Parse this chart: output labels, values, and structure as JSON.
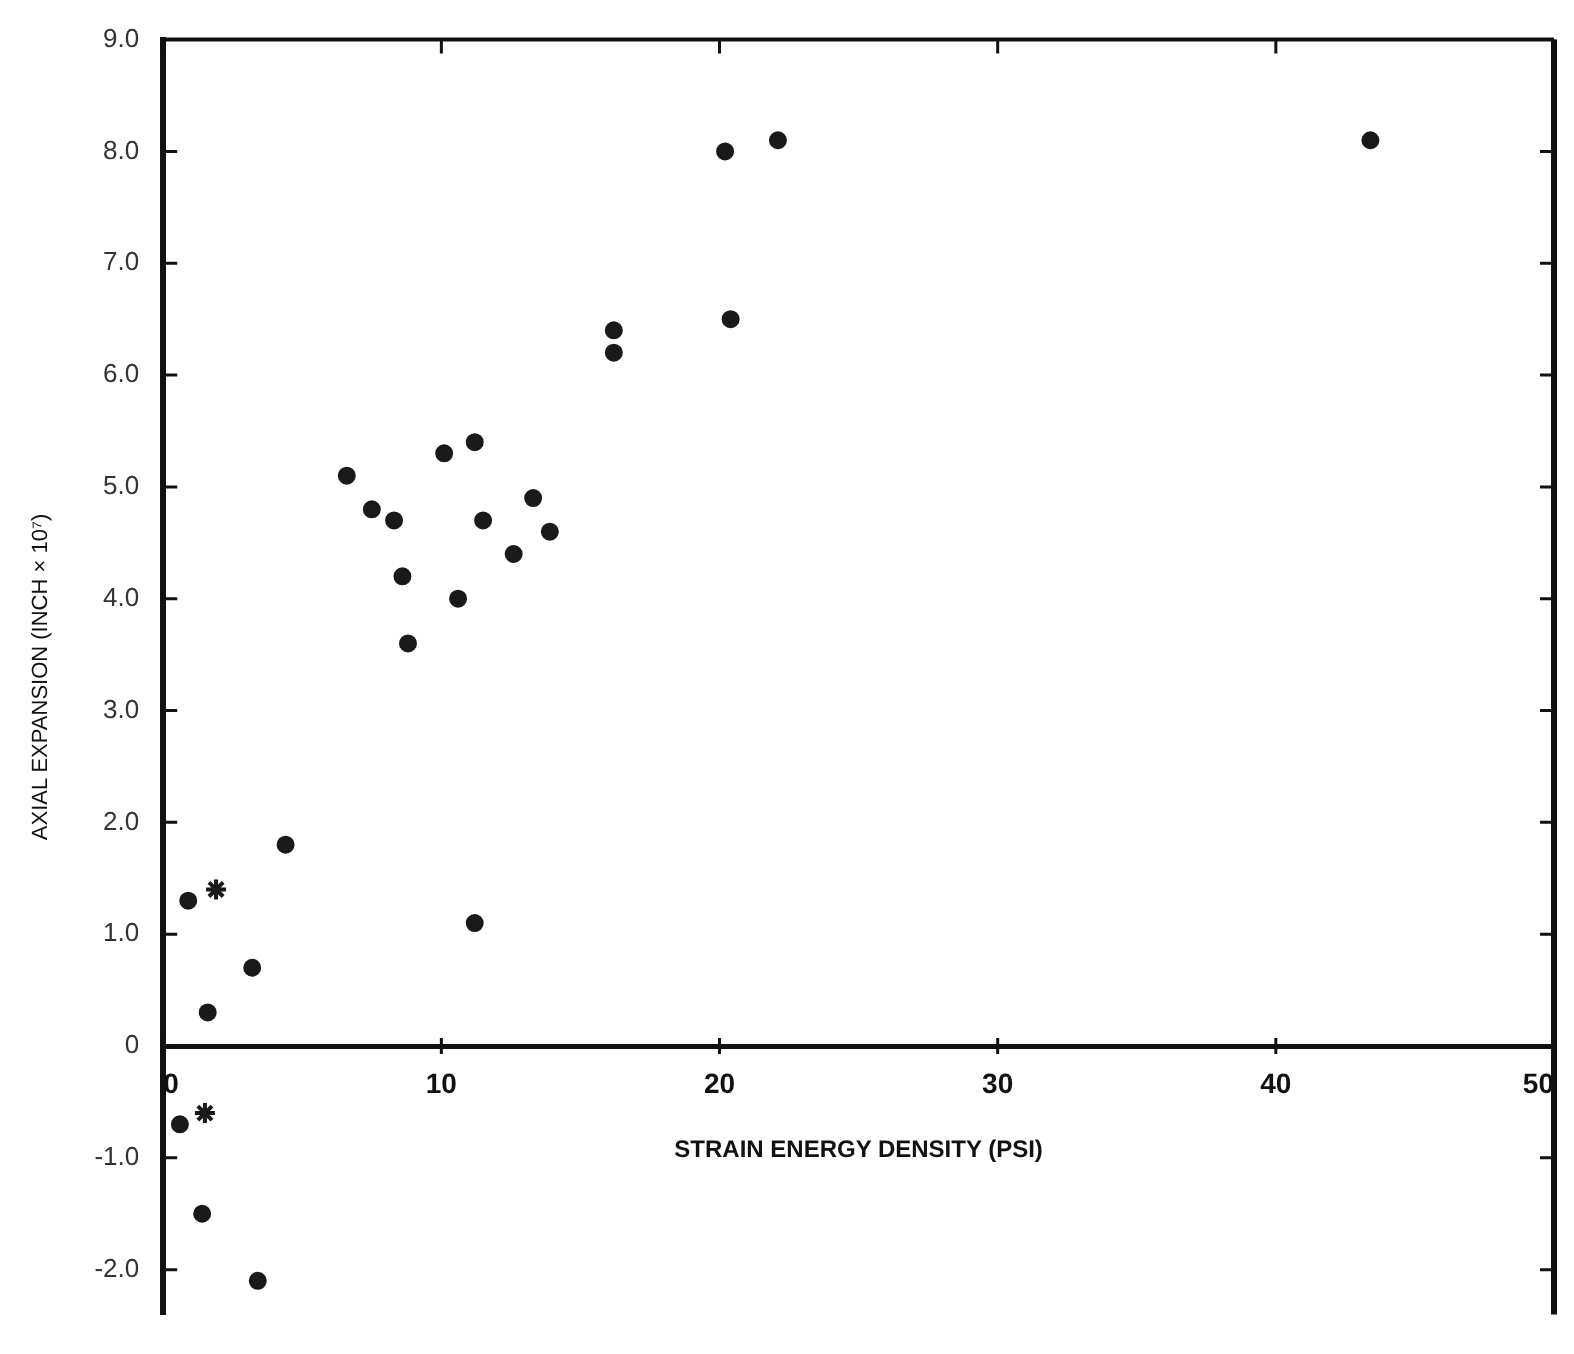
{
  "chart_data": {
    "type": "scatter",
    "xlabel": "STRAIN ENERGY DENSITY (PSI)",
    "ylabel": "AXIAL EXPANSION (INCH × 10⁷)",
    "xlim": [
      0,
      50
    ],
    "xticks": [
      0,
      10,
      20,
      30,
      40,
      50
    ],
    "ylim": [
      -2.4,
      9.0
    ],
    "yticks": [
      {
        "value": -2,
        "label": "-2.0"
      },
      {
        "value": -1,
        "label": "-1.0"
      },
      0,
      {
        "value": 1,
        "label": "1.0"
      },
      {
        "value": 2,
        "label": "2.0"
      },
      {
        "value": 3,
        "label": "3.0"
      },
      {
        "value": 4,
        "label": "4.0"
      },
      {
        "value": 5,
        "label": "5.0"
      },
      {
        "value": 6,
        "label": "6.0"
      },
      {
        "value": 7,
        "label": "7.0"
      },
      {
        "value": 8,
        "label": "8.0"
      },
      {
        "value": 9,
        "label": "9.0"
      }
    ],
    "grid": false,
    "legend": false,
    "series": [
      {
        "color": "#1a1a1a",
        "marker": "circle",
        "x": [
          6.6,
          7.5,
          8.3,
          8.6,
          8.8,
          10.1,
          11.2,
          11.5,
          10.6,
          12.6,
          13.3,
          13.9,
          16.2,
          16.2,
          20.2,
          20.4,
          22.1,
          43.4,
          4.4,
          11.2,
          3.2,
          1.6,
          0.9,
          0.6,
          1.4,
          3.4
        ],
        "values": [
          5.1,
          4.8,
          4.7,
          4.2,
          3.6,
          5.3,
          5.4,
          4.7,
          4.0,
          4.4,
          4.9,
          4.6,
          6.4,
          6.2,
          8.0,
          6.5,
          8.1,
          8.1,
          1.8,
          1.1,
          0.7,
          0.3,
          1.3,
          -0.7,
          -1.5,
          -2.1
        ]
      },
      {
        "color": "#1a1a1a",
        "marker": "cross",
        "x": [
          1.9,
          1.5
        ],
        "values": [
          1.4,
          -0.6
        ]
      }
    ]
  }
}
